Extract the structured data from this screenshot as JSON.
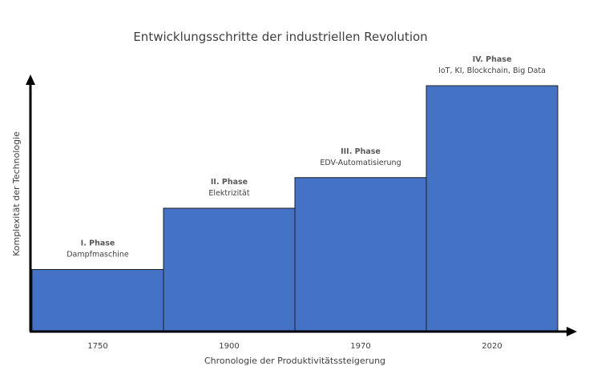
{
  "title": "Entwicklungsschritte der industriellen Revolution",
  "x_axis_label": "Chronologie der Produktivitätssteigerung",
  "y_axis_label": "Komplexität der Technologie",
  "colors": {
    "bar_fill": "#4472c4",
    "bar_stroke": "#1f1f1f",
    "axis": "#000000",
    "text": "#404040"
  },
  "chart_data": {
    "type": "bar",
    "categories": [
      "1750",
      "1900",
      "1970",
      "2020"
    ],
    "values": [
      1,
      2,
      2.5,
      4
    ],
    "phases": [
      {
        "name": "I. Phase",
        "description": "Dampfmaschine"
      },
      {
        "name": "II. Phase",
        "description": "Elektrizität"
      },
      {
        "name": "III. Phase",
        "description": "EDV-Automatisierung"
      },
      {
        "name": "IV. Phase",
        "description": "IoT, KI, Blockchain, Big Data"
      }
    ],
    "title": "Entwicklungsschritte der industriellen Revolution",
    "xlabel": "Chronologie der Produktivitätssteigerung",
    "ylabel": "Komplexität der Technologie",
    "grid": false,
    "legend": "none"
  }
}
